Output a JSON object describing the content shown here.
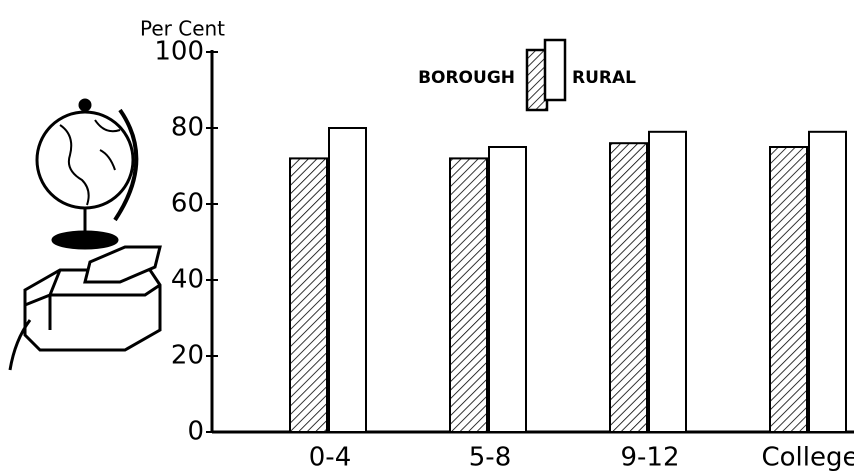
{
  "chart_data": {
    "type": "bar",
    "y_label": "Per Cent",
    "categories": [
      "0-4",
      "5-8",
      "9-12",
      "College"
    ],
    "series": [
      {
        "name": "BOROUGH",
        "color": "#000000",
        "hatched": true,
        "values": [
          72,
          72,
          76,
          75
        ]
      },
      {
        "name": "RURAL",
        "color": "#ffffff",
        "hatched": false,
        "values": [
          80,
          75,
          79,
          79
        ]
      }
    ],
    "ylim": [
      0,
      100
    ],
    "yticks": [
      0,
      20,
      40,
      60,
      80,
      100
    ],
    "grid": false
  }
}
